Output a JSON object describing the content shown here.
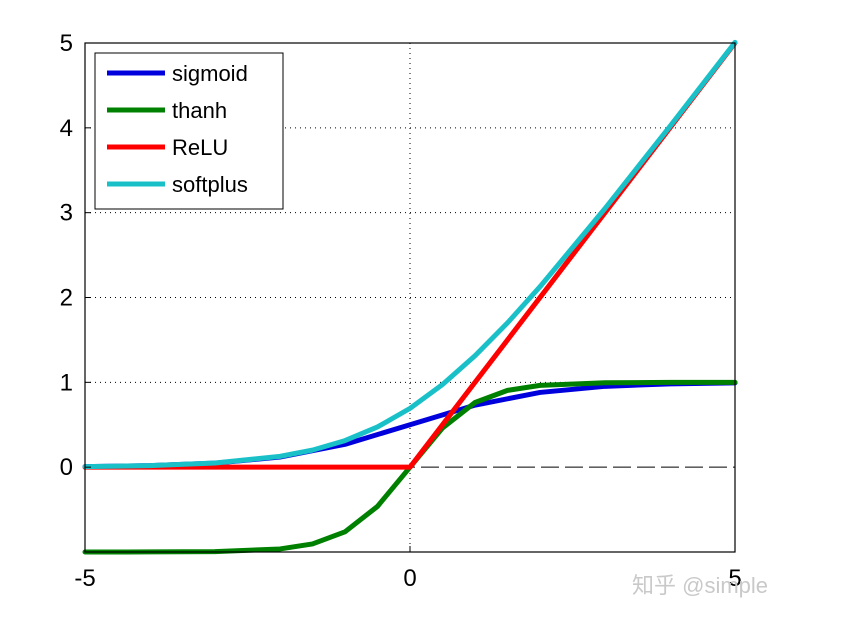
{
  "watermark": "知乎 @simple",
  "chart_data": {
    "type": "line",
    "title": "",
    "xlabel": "",
    "ylabel": "",
    "xlim": [
      -5,
      5
    ],
    "ylim": [
      -1,
      5
    ],
    "grid": true,
    "legend_position": "top-left",
    "x_ticks": [
      -5,
      0,
      5
    ],
    "y_ticks": [
      0,
      1,
      2,
      3,
      4,
      5
    ],
    "x_tick_labels": [
      "-5",
      "0",
      "5"
    ],
    "y_tick_labels": [
      "0",
      "1",
      "2",
      "3",
      "4",
      "5"
    ],
    "series": [
      {
        "name": "sigmoid",
        "color": "#0000dd",
        "x": [
          -5,
          -4,
          -3,
          -2,
          -1,
          0,
          1,
          2,
          3,
          4,
          5
        ],
        "y": [
          0.007,
          0.018,
          0.047,
          0.119,
          0.269,
          0.5,
          0.731,
          0.881,
          0.953,
          0.982,
          0.993
        ]
      },
      {
        "name": "thanh",
        "color": "#008000",
        "x": [
          -5,
          -4,
          -3,
          -2,
          -1.5,
          -1,
          -0.5,
          0,
          0.5,
          1,
          1.5,
          2,
          3,
          4,
          5
        ],
        "y": [
          -1.0,
          -0.999,
          -0.995,
          -0.964,
          -0.905,
          -0.762,
          -0.462,
          0,
          0.462,
          0.762,
          0.905,
          0.964,
          0.995,
          0.999,
          1.0
        ]
      },
      {
        "name": "ReLU",
        "color": "#ff0000",
        "x": [
          -5,
          0,
          5
        ],
        "y": [
          0,
          0,
          5
        ]
      },
      {
        "name": "softplus",
        "color": "#19c0c8",
        "x": [
          -5,
          -4,
          -3,
          -2,
          -1.5,
          -1,
          -0.5,
          0,
          0.5,
          1,
          1.5,
          2,
          3,
          4,
          5
        ],
        "y": [
          0.007,
          0.018,
          0.049,
          0.127,
          0.201,
          0.313,
          0.474,
          0.693,
          0.974,
          1.313,
          1.701,
          2.127,
          3.049,
          4.018,
          5.007
        ]
      }
    ]
  }
}
